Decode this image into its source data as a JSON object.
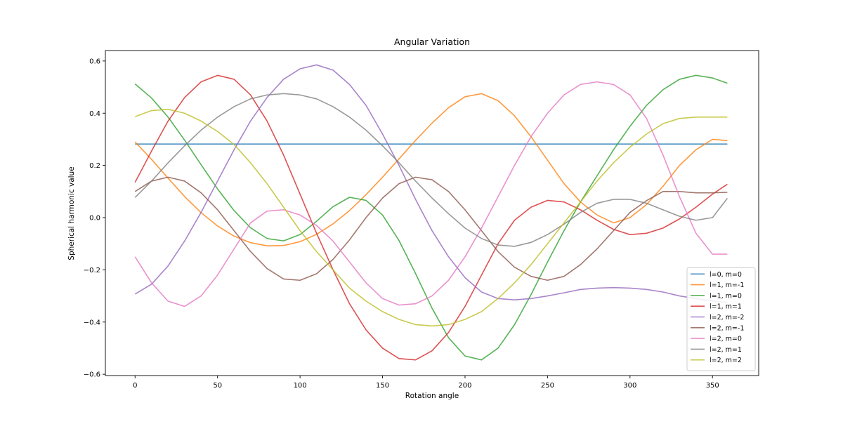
{
  "chart_data": {
    "type": "line",
    "title": "Angular Variation",
    "xlabel": "Rotation angle",
    "ylabel": "Spherical harmonic value",
    "xlim": [
      -18,
      378
    ],
    "ylim": [
      -0.605,
      0.64
    ],
    "x_ticks": [
      0,
      50,
      100,
      150,
      200,
      250,
      300,
      350
    ],
    "y_ticks": [
      -0.6,
      -0.4,
      -0.2,
      0.0,
      0.2,
      0.4,
      0.6
    ],
    "x_tick_labels": [
      "0",
      "50",
      "100",
      "150",
      "200",
      "250",
      "300",
      "350"
    ],
    "y_tick_labels": [
      "−0.6",
      "−0.4",
      "−0.2",
      "0.0",
      "0.2",
      "0.4",
      "0.6"
    ],
    "grid": false,
    "legend_position": "lower-right",
    "x": [
      0,
      10,
      20,
      30,
      40,
      50,
      60,
      70,
      80,
      90,
      100,
      110,
      120,
      130,
      140,
      150,
      160,
      170,
      180,
      190,
      200,
      210,
      220,
      230,
      240,
      250,
      260,
      270,
      280,
      290,
      300,
      310,
      320,
      330,
      340,
      350,
      359
    ],
    "series": [
      {
        "name": "l=0, m=0",
        "color": "#1f77b4",
        "values": [
          0.282,
          0.282,
          0.282,
          0.282,
          0.282,
          0.282,
          0.282,
          0.282,
          0.282,
          0.282,
          0.282,
          0.282,
          0.282,
          0.282,
          0.282,
          0.282,
          0.282,
          0.282,
          0.282,
          0.282,
          0.282,
          0.282,
          0.282,
          0.282,
          0.282,
          0.282,
          0.282,
          0.282,
          0.282,
          0.282,
          0.282,
          0.282,
          0.282,
          0.282,
          0.282,
          0.282,
          0.282
        ]
      },
      {
        "name": "l=1, m=-1",
        "color": "#ff7f0e",
        "values": [
          0.29,
          0.223,
          0.151,
          0.081,
          0.019,
          -0.032,
          -0.071,
          -0.096,
          -0.108,
          -0.107,
          -0.092,
          -0.064,
          -0.024,
          0.027,
          0.088,
          0.155,
          0.225,
          0.296,
          0.362,
          0.421,
          0.463,
          0.475,
          0.448,
          0.39,
          0.31,
          0.22,
          0.13,
          0.06,
          0.01,
          -0.02,
          0.0,
          0.05,
          0.12,
          0.2,
          0.26,
          0.3,
          0.295
        ]
      },
      {
        "name": "l=1, m=0",
        "color": "#2ca02c",
        "values": [
          0.512,
          0.458,
          0.385,
          0.297,
          0.203,
          0.11,
          0.027,
          -0.039,
          -0.08,
          -0.089,
          -0.065,
          -0.014,
          0.042,
          0.078,
          0.066,
          0.01,
          -0.088,
          -0.214,
          -0.347,
          -0.46,
          -0.53,
          -0.545,
          -0.5,
          -0.41,
          -0.295,
          -0.17,
          -0.05,
          0.06,
          0.16,
          0.26,
          0.35,
          0.43,
          0.49,
          0.53,
          0.545,
          0.535,
          0.515
        ]
      },
      {
        "name": "l=1, m=1",
        "color": "#d62728",
        "values": [
          0.135,
          0.255,
          0.37,
          0.46,
          0.52,
          0.545,
          0.53,
          0.47,
          0.37,
          0.24,
          0.09,
          -0.06,
          -0.2,
          -0.33,
          -0.43,
          -0.5,
          -0.54,
          -0.545,
          -0.51,
          -0.44,
          -0.34,
          -0.22,
          -0.1,
          -0.01,
          0.04,
          0.066,
          0.06,
          0.03,
          -0.01,
          -0.045,
          -0.065,
          -0.06,
          -0.04,
          -0.005,
          0.04,
          0.09,
          0.128
        ]
      },
      {
        "name": "l=2, m=-2",
        "color": "#9467bd",
        "values": [
          -0.293,
          -0.255,
          -0.185,
          -0.09,
          0.02,
          0.14,
          0.26,
          0.37,
          0.46,
          0.53,
          0.57,
          0.585,
          0.565,
          0.51,
          0.43,
          0.32,
          0.2,
          0.07,
          -0.05,
          -0.15,
          -0.23,
          -0.285,
          -0.31,
          -0.315,
          -0.31,
          -0.3,
          -0.288,
          -0.275,
          -0.27,
          -0.268,
          -0.27,
          -0.275,
          -0.285,
          -0.3,
          -0.31,
          -0.32,
          -0.325
        ]
      },
      {
        "name": "l=2, m=-1",
        "color": "#8c564b",
        "values": [
          0.1,
          0.14,
          0.155,
          0.14,
          0.095,
          0.03,
          -0.05,
          -0.13,
          -0.195,
          -0.235,
          -0.24,
          -0.215,
          -0.16,
          -0.085,
          0.0,
          0.075,
          0.13,
          0.155,
          0.145,
          0.1,
          0.03,
          -0.05,
          -0.13,
          -0.19,
          -0.225,
          -0.24,
          -0.225,
          -0.18,
          -0.12,
          -0.05,
          0.02,
          0.065,
          0.1,
          0.1,
          0.095,
          0.095,
          0.097
        ]
      },
      {
        "name": "l=2, m=0",
        "color": "#e377c2",
        "values": [
          -0.15,
          -0.25,
          -0.32,
          -0.34,
          -0.3,
          -0.22,
          -0.12,
          -0.02,
          0.025,
          0.03,
          0.01,
          -0.03,
          -0.09,
          -0.17,
          -0.25,
          -0.31,
          -0.335,
          -0.33,
          -0.3,
          -0.24,
          -0.15,
          -0.04,
          0.08,
          0.2,
          0.31,
          0.4,
          0.47,
          0.51,
          0.52,
          0.51,
          0.47,
          0.38,
          0.24,
          0.08,
          -0.06,
          -0.14,
          -0.14
        ]
      },
      {
        "name": "l=2, m=1",
        "color": "#7f7f7f",
        "values": [
          0.077,
          0.14,
          0.21,
          0.275,
          0.335,
          0.385,
          0.425,
          0.455,
          0.47,
          0.475,
          0.47,
          0.455,
          0.425,
          0.385,
          0.335,
          0.275,
          0.21,
          0.14,
          0.075,
          0.015,
          -0.04,
          -0.08,
          -0.105,
          -0.11,
          -0.095,
          -0.065,
          -0.025,
          0.02,
          0.055,
          0.07,
          0.07,
          0.055,
          0.03,
          0.005,
          -0.01,
          0.0,
          0.074
        ]
      },
      {
        "name": "l=2, m=2",
        "color": "#bcbd22",
        "values": [
          0.387,
          0.41,
          0.415,
          0.4,
          0.37,
          0.33,
          0.28,
          0.21,
          0.13,
          0.04,
          -0.05,
          -0.13,
          -0.2,
          -0.27,
          -0.32,
          -0.36,
          -0.39,
          -0.41,
          -0.415,
          -0.41,
          -0.39,
          -0.36,
          -0.31,
          -0.25,
          -0.18,
          -0.1,
          -0.02,
          0.06,
          0.14,
          0.21,
          0.27,
          0.32,
          0.36,
          0.38,
          0.385,
          0.385,
          0.385
        ]
      }
    ]
  }
}
